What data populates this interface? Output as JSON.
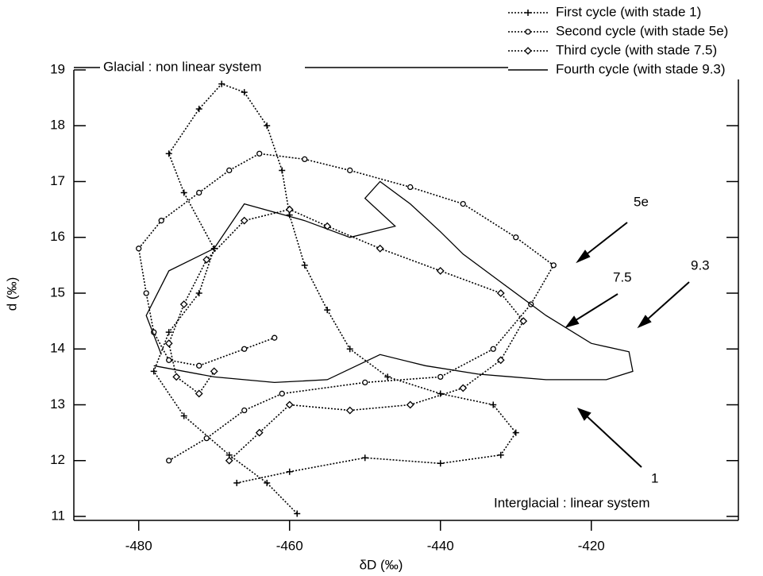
{
  "chart_data": {
    "type": "line",
    "x_label": "δD (‰)",
    "y_label": "d (‰)",
    "xlim": [
      -488.6,
      -400.5
    ],
    "ylim": [
      11,
      19
    ],
    "xticks": [
      -480,
      -460,
      -440,
      -420
    ],
    "yticks": [
      11,
      12,
      13,
      14,
      15,
      16,
      17,
      18,
      19
    ],
    "annotations": [
      "Glacial : non linear system",
      "Interglacial : linear system",
      "5e",
      "7.5",
      "9.3",
      "1"
    ],
    "series": [
      {
        "name": "First cycle (with stade 1)",
        "color": "#000000",
        "marker": "plus",
        "dash": "2,2",
        "x": [
          -459,
          -463,
          -468,
          -474,
          -478,
          -476,
          -472,
          -470,
          -474,
          -476,
          -472,
          -469,
          -466,
          -463,
          -461,
          -460,
          -458,
          -455,
          -452,
          -447,
          -440,
          -433,
          -430,
          -432,
          -440,
          -450,
          -460,
          -467
        ],
        "values": [
          11.05,
          11.6,
          12.1,
          12.8,
          13.6,
          14.3,
          15.0,
          15.8,
          16.8,
          17.5,
          18.3,
          18.75,
          18.6,
          18.0,
          17.2,
          16.4,
          15.5,
          14.7,
          14.0,
          13.5,
          13.2,
          13.0,
          12.5,
          12.1,
          11.95,
          12.05,
          11.8,
          11.6
        ]
      },
      {
        "name": "Second cycle (with stade 5e)",
        "color": "#000000",
        "marker": "circle",
        "dash": "2,2",
        "x": [
          -476,
          -471,
          -466,
          -461,
          -450,
          -440,
          -433,
          -428,
          -425,
          -430,
          -437,
          -444,
          -452,
          -458,
          -464,
          -468,
          -472,
          -477,
          -480,
          -479,
          -478,
          -476,
          -472,
          -466,
          -462
        ],
        "values": [
          12.0,
          12.4,
          12.9,
          13.2,
          13.4,
          13.5,
          14.0,
          14.8,
          15.5,
          16.0,
          16.6,
          16.9,
          17.2,
          17.4,
          17.5,
          17.2,
          16.8,
          16.3,
          15.8,
          15.0,
          14.3,
          13.8,
          13.7,
          14.0,
          14.2
        ]
      },
      {
        "name": "Third cycle (with stade 7.5)",
        "color": "#000000",
        "marker": "diamond",
        "dash": "2,2",
        "x": [
          -468,
          -464,
          -460,
          -452,
          -444,
          -437,
          -432,
          -429,
          -432,
          -440,
          -448,
          -455,
          -460,
          -466,
          -471,
          -474,
          -476,
          -475,
          -472,
          -470
        ],
        "values": [
          12.0,
          12.5,
          13.0,
          12.9,
          13.0,
          13.3,
          13.8,
          14.5,
          15.0,
          15.4,
          15.8,
          16.2,
          16.5,
          16.3,
          15.6,
          14.8,
          14.1,
          13.5,
          13.2,
          13.6
        ]
      },
      {
        "name": "Fourth cycle (with stade 9.3)",
        "color": "#000000",
        "marker": "none",
        "dash": "none",
        "x": [
          -478,
          -470,
          -462,
          -455,
          -448,
          -442,
          -435,
          -426,
          -418,
          -414.5,
          -415,
          -420,
          -426,
          -432,
          -437,
          -440,
          -444,
          -448,
          -450,
          -446,
          -452,
          -458,
          -466,
          -470,
          -476,
          -479,
          -477
        ],
        "values": [
          13.7,
          13.5,
          13.4,
          13.45,
          13.9,
          13.7,
          13.55,
          13.45,
          13.45,
          13.6,
          13.95,
          14.1,
          14.6,
          15.2,
          15.7,
          16.1,
          16.6,
          17.0,
          16.7,
          16.2,
          16.0,
          16.3,
          16.6,
          15.8,
          15.4,
          14.6,
          13.9
        ]
      }
    ]
  }
}
